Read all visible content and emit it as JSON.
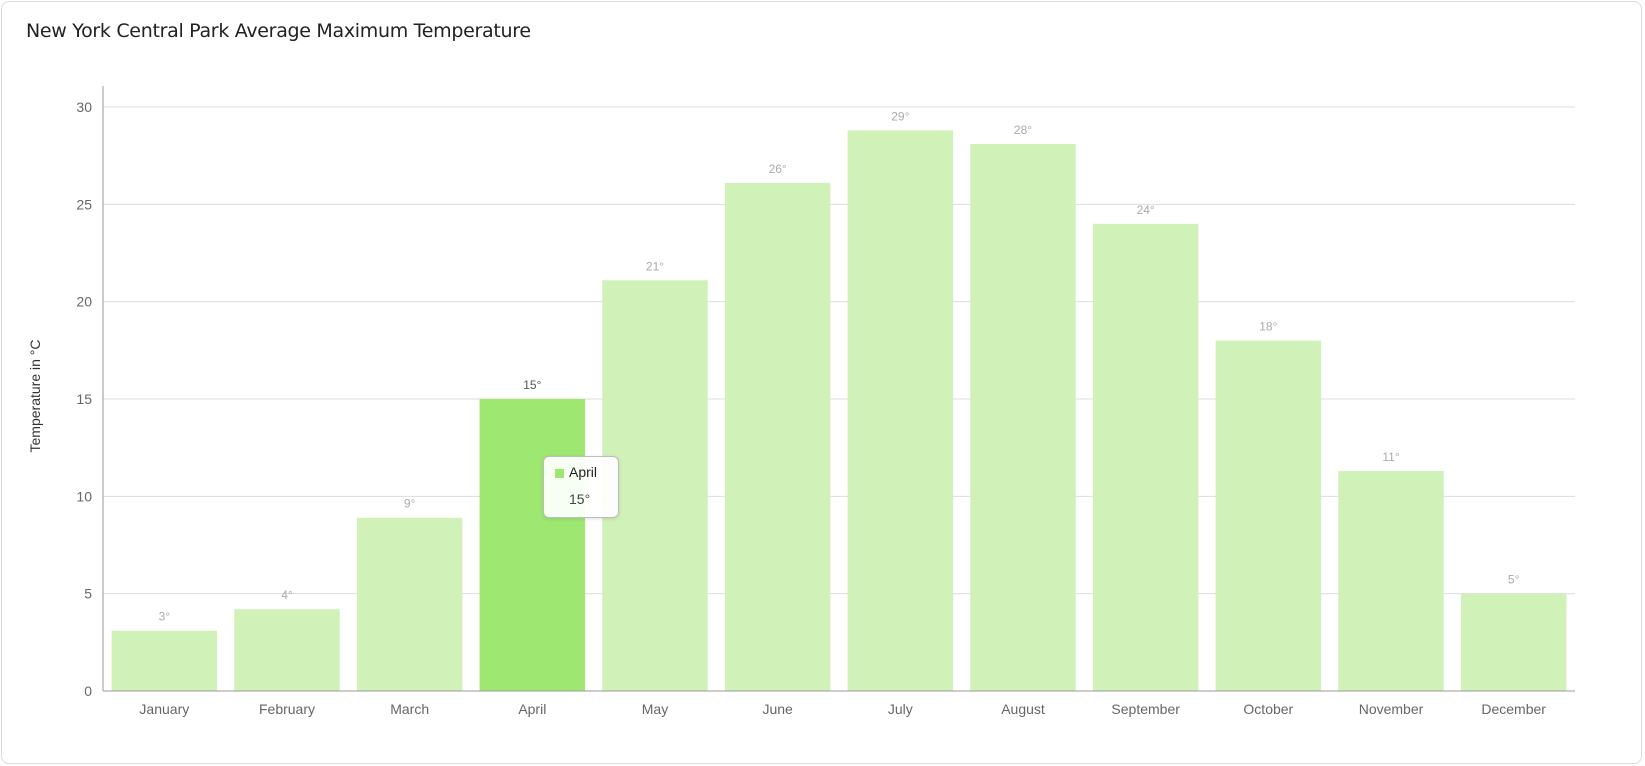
{
  "chart_data": {
    "type": "bar",
    "title": "New York Central Park Average Maximum Temperature",
    "ylabel": "Temperature in °C",
    "xlabel": "",
    "ylim": [
      0,
      30
    ],
    "yticks": [
      0,
      5,
      10,
      15,
      20,
      25,
      30
    ],
    "categories": [
      "January",
      "February",
      "March",
      "April",
      "May",
      "June",
      "July",
      "August",
      "September",
      "October",
      "November",
      "December"
    ],
    "values": [
      3.1,
      4.2,
      8.9,
      15,
      21.1,
      26.1,
      28.8,
      28.1,
      24,
      18,
      11.3,
      5
    ],
    "data_labels": [
      "3°",
      "4°",
      "9°",
      "15°",
      "21°",
      "26°",
      "29°",
      "28°",
      "24°",
      "18°",
      "11°",
      "5°"
    ],
    "highlighted_index": 3,
    "grid": true,
    "legend": "none",
    "colors": {
      "bar": "#d0f2b9",
      "bar_highlight": "#9ee872",
      "grid": "#dddddd",
      "axis": "#999999"
    }
  },
  "tooltip": {
    "name": "April",
    "value": "15°"
  }
}
